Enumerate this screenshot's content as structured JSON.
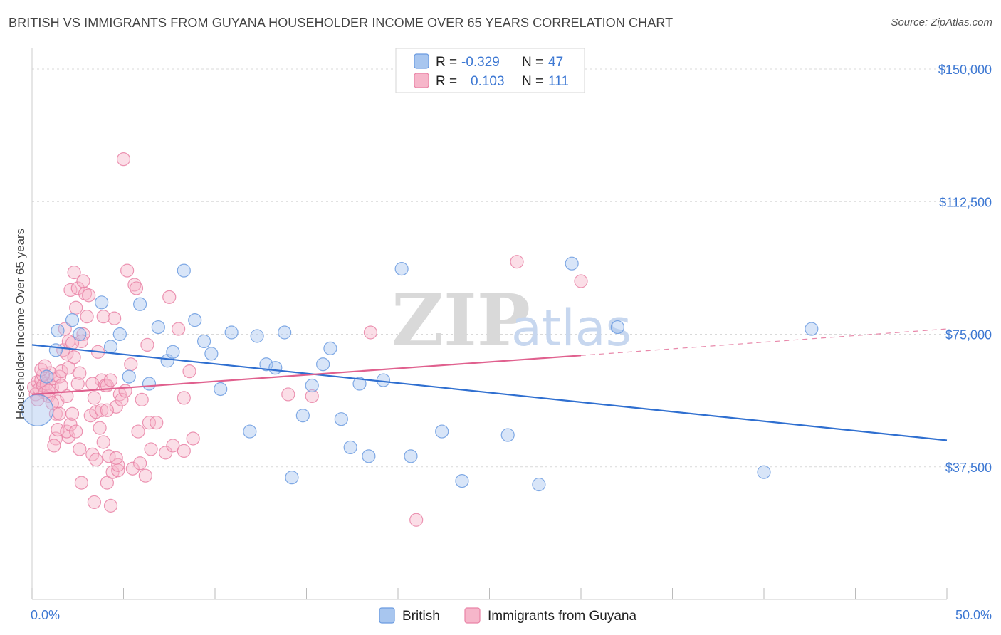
{
  "title": "BRITISH VS IMMIGRANTS FROM GUYANA HOUSEHOLDER INCOME OVER 65 YEARS CORRELATION CHART",
  "source": "Source: ZipAtlas.com",
  "watermark": {
    "zip": "ZIP",
    "atlas": "atlas"
  },
  "colors": {
    "british_fill": "#a8c6ef",
    "british_stroke": "#6b9be0",
    "british_line": "#2f6fd0",
    "guyana_fill": "#f6b6ca",
    "guyana_stroke": "#e983a6",
    "guyana_line": "#e0608e",
    "grid": "#d9d9d9",
    "axis_text": "#3d78d3"
  },
  "legend": {
    "r_label": "R =",
    "n_label": "N =",
    "british": {
      "r": "-0.329",
      "n": "47"
    },
    "guyana": {
      "r": "0.103",
      "n": "111"
    }
  },
  "bottom_legend": {
    "british": "British",
    "guyana": "Immigrants from Guyana"
  },
  "chart_data": {
    "type": "scatter",
    "title": "BRITISH VS IMMIGRANTS FROM GUYANA HOUSEHOLDER INCOME OVER 65 YEARS CORRELATION CHART",
    "xlabel": "",
    "ylabel": "Householder Income Over 65 years",
    "xlim": [
      0,
      50
    ],
    "ylim": [
      0,
      155000
    ],
    "x_tick_labels": [
      "0.0%",
      "50.0%"
    ],
    "y_ticks": [
      37500,
      75000,
      112500,
      150000
    ],
    "y_tick_labels": [
      "$37,500",
      "$75,000",
      "$112,500",
      "$150,000"
    ],
    "series": [
      {
        "name": "British",
        "points": [
          [
            0.3,
            53500,
            3
          ],
          [
            0.8,
            63000,
            1
          ],
          [
            1.3,
            70500,
            1
          ],
          [
            1.4,
            76000,
            1
          ],
          [
            2.2,
            79000,
            1
          ],
          [
            2.6,
            75000,
            1
          ],
          [
            3.8,
            84000,
            1
          ],
          [
            4.3,
            71500,
            1
          ],
          [
            4.8,
            75000,
            1
          ],
          [
            5.3,
            63000,
            1
          ],
          [
            5.9,
            83500,
            1
          ],
          [
            6.4,
            61000,
            1
          ],
          [
            6.9,
            77000,
            1
          ],
          [
            7.4,
            67500,
            1
          ],
          [
            7.7,
            70000,
            1
          ],
          [
            8.3,
            93000,
            1
          ],
          [
            8.9,
            79000,
            1
          ],
          [
            9.4,
            73000,
            1
          ],
          [
            9.8,
            69500,
            1
          ],
          [
            10.3,
            59500,
            1
          ],
          [
            10.9,
            75500,
            1
          ],
          [
            11.9,
            47500,
            1
          ],
          [
            12.3,
            74500,
            1
          ],
          [
            12.8,
            66500,
            1
          ],
          [
            13.3,
            65500,
            1
          ],
          [
            13.8,
            75500,
            1
          ],
          [
            14.2,
            34500,
            1
          ],
          [
            14.8,
            52000,
            1
          ],
          [
            15.3,
            60500,
            1
          ],
          [
            15.9,
            66500,
            1
          ],
          [
            16.3,
            71000,
            1
          ],
          [
            16.9,
            51000,
            1
          ],
          [
            17.4,
            43000,
            1
          ],
          [
            17.9,
            61000,
            1
          ],
          [
            18.4,
            40500,
            1
          ],
          [
            19.2,
            62000,
            1
          ],
          [
            20.2,
            93500,
            1
          ],
          [
            20.7,
            40500,
            1
          ],
          [
            22.4,
            47500,
            1
          ],
          [
            23.5,
            33500,
            1
          ],
          [
            26.0,
            46500,
            1
          ],
          [
            27.7,
            32500,
            1
          ],
          [
            29.5,
            95000,
            1
          ],
          [
            32.0,
            77000,
            1
          ],
          [
            40.0,
            36000,
            1
          ],
          [
            42.6,
            76500,
            1
          ]
        ],
        "trend": {
          "x": [
            0,
            50
          ],
          "y": [
            72000,
            45000
          ],
          "style": "solid"
        }
      },
      {
        "name": "Immigrants from Guyana",
        "points": [
          [
            0.1,
            60000,
            1
          ],
          [
            0.2,
            58000,
            1
          ],
          [
            0.3,
            61500,
            1
          ],
          [
            0.4,
            59500,
            1
          ],
          [
            0.5,
            62000,
            1
          ],
          [
            0.6,
            60500,
            1
          ],
          [
            0.7,
            58500,
            1
          ],
          [
            0.8,
            61000,
            1
          ],
          [
            0.9,
            57500,
            1
          ],
          [
            1.0,
            64000,
            1
          ],
          [
            1.1,
            60000,
            1
          ],
          [
            1.2,
            62500,
            1
          ],
          [
            0.6,
            63500,
            1
          ],
          [
            0.9,
            59000,
            1
          ],
          [
            1.3,
            45500,
            1
          ],
          [
            1.2,
            43500,
            1
          ],
          [
            1.4,
            48000,
            1
          ],
          [
            1.3,
            52500,
            1
          ],
          [
            1.4,
            56000,
            1
          ],
          [
            1.5,
            63000,
            1
          ],
          [
            1.6,
            64500,
            1
          ],
          [
            1.7,
            70500,
            1
          ],
          [
            1.8,
            76500,
            1
          ],
          [
            1.9,
            57500,
            1
          ],
          [
            2.0,
            46000,
            1
          ],
          [
            1.9,
            47500,
            1
          ],
          [
            2.1,
            49500,
            1
          ],
          [
            2.2,
            52500,
            1
          ],
          [
            1.9,
            69500,
            1
          ],
          [
            2.0,
            73000,
            1
          ],
          [
            2.1,
            87500,
            1
          ],
          [
            2.0,
            65500,
            1
          ],
          [
            2.3,
            68500,
            1
          ],
          [
            2.4,
            82500,
            1
          ],
          [
            2.3,
            92500,
            1
          ],
          [
            2.5,
            88000,
            1
          ],
          [
            2.4,
            47500,
            1
          ],
          [
            2.5,
            61000,
            1
          ],
          [
            2.6,
            42500,
            1
          ],
          [
            2.8,
            75000,
            1
          ],
          [
            2.7,
            33000,
            1
          ],
          [
            2.8,
            90000,
            1
          ],
          [
            2.9,
            86500,
            1
          ],
          [
            3.0,
            80000,
            1
          ],
          [
            2.7,
            73000,
            1
          ],
          [
            3.2,
            52000,
            1
          ],
          [
            3.3,
            41000,
            1
          ],
          [
            3.4,
            27500,
            1
          ],
          [
            3.5,
            39500,
            1
          ],
          [
            3.5,
            53000,
            1
          ],
          [
            3.7,
            48500,
            1
          ],
          [
            3.6,
            70000,
            1
          ],
          [
            3.8,
            62000,
            1
          ],
          [
            3.3,
            61000,
            1
          ],
          [
            3.9,
            80000,
            1
          ],
          [
            3.8,
            53500,
            1
          ],
          [
            4.0,
            60500,
            1
          ],
          [
            4.1,
            33000,
            1
          ],
          [
            4.2,
            40500,
            1
          ],
          [
            4.3,
            26500,
            1
          ],
          [
            4.4,
            36000,
            1
          ],
          [
            4.5,
            79500,
            1
          ],
          [
            4.6,
            54500,
            1
          ],
          [
            4.7,
            36500,
            1
          ],
          [
            4.8,
            58000,
            1
          ],
          [
            4.7,
            38000,
            1
          ],
          [
            4.9,
            56500,
            1
          ],
          [
            5.0,
            124500,
            1
          ],
          [
            5.1,
            59000,
            1
          ],
          [
            5.2,
            93000,
            1
          ],
          [
            5.4,
            66500,
            1
          ],
          [
            5.5,
            37000,
            1
          ],
          [
            5.6,
            89000,
            1
          ],
          [
            5.7,
            88000,
            1
          ],
          [
            5.8,
            47500,
            1
          ],
          [
            6.0,
            56500,
            1
          ],
          [
            6.2,
            35000,
            1
          ],
          [
            6.3,
            72000,
            1
          ],
          [
            6.4,
            50000,
            1
          ],
          [
            6.5,
            42500,
            1
          ],
          [
            6.8,
            50000,
            1
          ],
          [
            7.3,
            41500,
            1
          ],
          [
            7.5,
            85500,
            1
          ],
          [
            7.7,
            43500,
            1
          ],
          [
            8.0,
            76500,
            1
          ],
          [
            8.3,
            42000,
            1
          ],
          [
            8.3,
            57000,
            1
          ],
          [
            8.6,
            64500,
            1
          ],
          [
            8.8,
            45500,
            1
          ],
          [
            4.1,
            60500,
            1
          ],
          [
            4.1,
            53500,
            1
          ],
          [
            15.3,
            57500,
            1
          ],
          [
            18.5,
            75500,
            1
          ],
          [
            21.0,
            22500,
            1
          ],
          [
            26.5,
            95500,
            1
          ],
          [
            30.0,
            90000,
            1
          ],
          [
            14.0,
            58000,
            1
          ],
          [
            0.5,
            65000,
            1
          ],
          [
            0.7,
            66000,
            1
          ],
          [
            3.1,
            86000,
            1
          ],
          [
            2.6,
            64000,
            1
          ],
          [
            3.4,
            57000,
            1
          ],
          [
            1.5,
            52500,
            1
          ],
          [
            1.1,
            55500,
            1
          ],
          [
            0.3,
            56500,
            1
          ],
          [
            4.3,
            62000,
            1
          ],
          [
            2.2,
            72500,
            1
          ],
          [
            1.6,
            60500,
            1
          ],
          [
            5.9,
            38500,
            1
          ],
          [
            3.9,
            44500,
            1
          ],
          [
            4.6,
            40000,
            1
          ]
        ],
        "trend": {
          "x": [
            0,
            30
          ],
          "y": [
            58000,
            69000
          ],
          "style": "solid",
          "extended": {
            "x": [
              30,
              50
            ],
            "y": [
              69000,
              76500
            ],
            "style": "dashed"
          }
        }
      }
    ],
    "legend": "top-center"
  }
}
